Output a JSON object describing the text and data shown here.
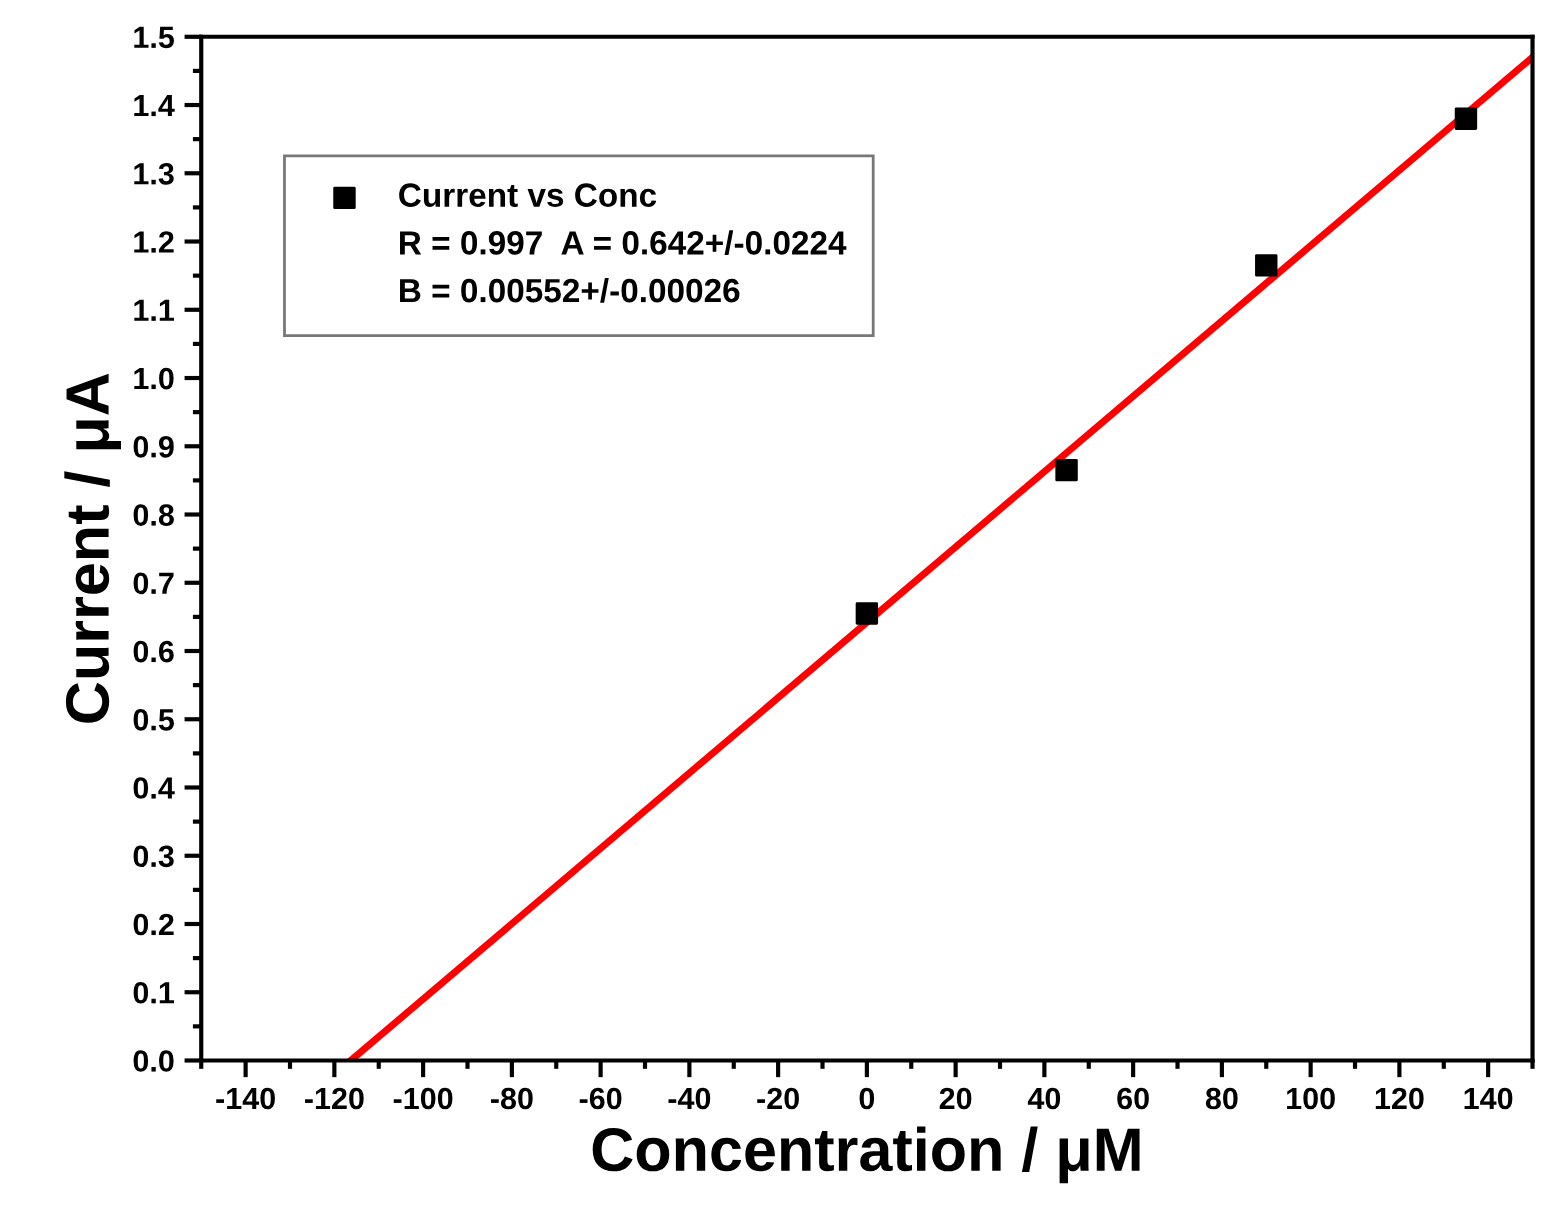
{
  "chart_data": {
    "type": "scatter",
    "xlabel": "Concentration / μM",
    "ylabel": "Current / μA",
    "xlim": [
      -150,
      150
    ],
    "xticks": [
      -140,
      -120,
      -100,
      -80,
      -60,
      -40,
      -20,
      0,
      20,
      40,
      60,
      80,
      100,
      120,
      140
    ],
    "ylim": [
      0,
      1.5
    ],
    "yticks": [
      {
        "value": 0,
        "label": "0.0"
      },
      0.1,
      0.2,
      0.3,
      0.4,
      0.5,
      0.6,
      0.7,
      0.8,
      0.9,
      {
        "value": 1,
        "label": "1.0"
      },
      1.1,
      1.2,
      1.3,
      1.4,
      1.5
    ],
    "grid": false,
    "legend": "top left",
    "series": [
      {
        "name": "Current vs Conc",
        "marker": "square",
        "color": "#000000",
        "x": [
          0,
          45,
          90,
          135
        ],
        "values": [
          0.655,
          0.865,
          1.165,
          1.38
        ]
      },
      {
        "type": "line",
        "marker": "none",
        "color": "#ff0000",
        "x": [
          -116.3,
          150
        ],
        "values": [
          0,
          1.47
        ]
      }
    ],
    "annotations": [
      "R = 0.997  A = 0.642+/-0.0224",
      "B = 0.00552+/-0.00026"
    ]
  }
}
